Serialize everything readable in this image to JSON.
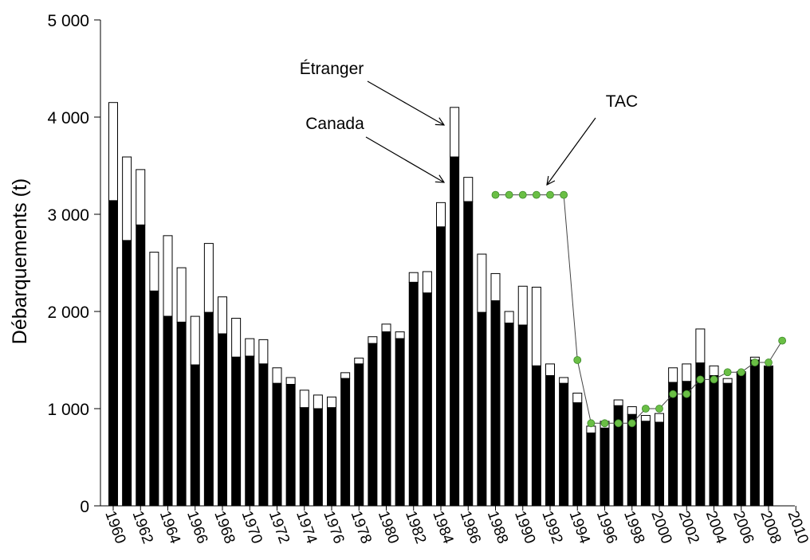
{
  "chart_data": {
    "type": "bar",
    "stacked": true,
    "title": "",
    "ylabel": "Débarquements (t)",
    "xlabel": "",
    "ylim": [
      0,
      5000
    ],
    "xlim": [
      1959.5,
      2010
    ],
    "yticks": [
      {
        "value": 0,
        "label": "0"
      },
      {
        "value": 1000,
        "label": "1 000"
      },
      {
        "value": 2000,
        "label": "2 000"
      },
      {
        "value": 3000,
        "label": "3 000"
      },
      {
        "value": 4000,
        "label": "4 000"
      },
      {
        "value": 5000,
        "label": "5 000"
      }
    ],
    "xticks": [
      "1960",
      "1962",
      "1964",
      "1966",
      "1968",
      "1970",
      "1972",
      "1974",
      "1976",
      "1978",
      "1980",
      "1982",
      "1984",
      "1986",
      "1988",
      "1990",
      "1992",
      "1994",
      "1996",
      "1998",
      "2000",
      "2002",
      "2004",
      "2006",
      "2008",
      "2010"
    ],
    "years": [
      1960,
      1961,
      1962,
      1963,
      1964,
      1965,
      1966,
      1967,
      1968,
      1969,
      1970,
      1971,
      1972,
      1973,
      1974,
      1975,
      1976,
      1977,
      1978,
      1979,
      1980,
      1981,
      1982,
      1983,
      1984,
      1985,
      1986,
      1987,
      1988,
      1989,
      1990,
      1991,
      1992,
      1993,
      1994,
      1995,
      1996,
      1997,
      1998,
      1999,
      2000,
      2001,
      2002,
      2003,
      2004,
      2005,
      2006,
      2007,
      2008
    ],
    "series": [
      {
        "name": "Canada",
        "color": "#000000",
        "values": [
          3140,
          2730,
          2890,
          2210,
          1950,
          1890,
          1450,
          1990,
          1770,
          1530,
          1540,
          1460,
          1260,
          1250,
          1010,
          1000,
          1010,
          1310,
          1460,
          1670,
          1790,
          1720,
          2300,
          2190,
          2870,
          3590,
          3130,
          1990,
          2110,
          1880,
          1860,
          1440,
          1340,
          1260,
          1060,
          750,
          800,
          1030,
          940,
          870,
          860,
          1270,
          1280,
          1470,
          1340,
          1260,
          1360,
          1500,
          1430
        ]
      },
      {
        "name": "Étranger",
        "color": "#ffffff",
        "values": [
          1010,
          860,
          570,
          400,
          830,
          560,
          500,
          710,
          380,
          400,
          180,
          250,
          160,
          70,
          180,
          140,
          110,
          60,
          60,
          70,
          80,
          70,
          100,
          220,
          250,
          510,
          250,
          600,
          280,
          120,
          400,
          810,
          120,
          60,
          100,
          70,
          70,
          60,
          80,
          60,
          90,
          150,
          180,
          350,
          100,
          50,
          20,
          30,
          10
        ]
      }
    ],
    "tac": {
      "name": "TAC",
      "color": "#6abf45",
      "x": [
        1988,
        1989,
        1990,
        1991,
        1992,
        1993,
        1994,
        1995,
        1996,
        1997,
        1998,
        1999,
        2000,
        2001,
        2002,
        2003,
        2004,
        2005,
        2006,
        2007,
        2008,
        2009
      ],
      "y": [
        3200,
        3200,
        3200,
        3200,
        3200,
        3200,
        1500,
        850,
        850,
        850,
        850,
        1000,
        1000,
        1150,
        1150,
        1300,
        1300,
        1375,
        1375,
        1475,
        1475,
        1700
      ]
    },
    "annotations": [
      {
        "text": "Étranger",
        "target_year": 1985
      },
      {
        "text": "Canada",
        "target_year": 1985
      },
      {
        "text": "TAC",
        "target_year": 1992
      }
    ]
  }
}
